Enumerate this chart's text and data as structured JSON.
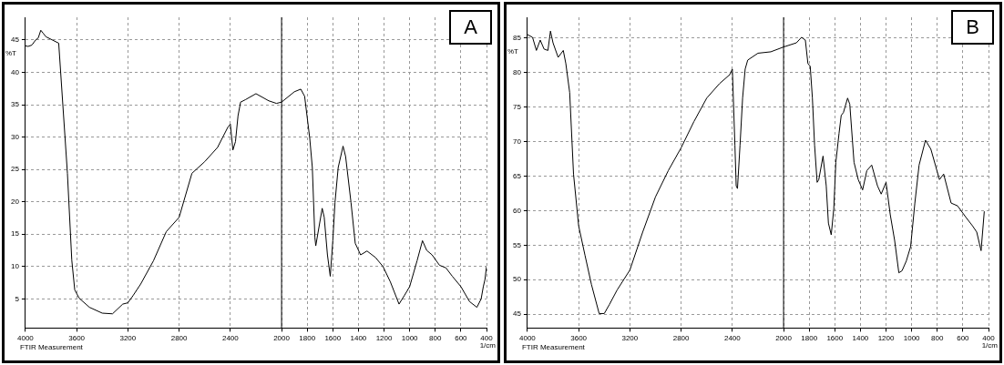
{
  "chart_data": [
    {
      "type": "line",
      "title": "A",
      "xlabel": "1/cm",
      "ylabel": "%T",
      "annotations": [
        "FTIR Measurement"
      ],
      "color": "#000000",
      "marker": "none",
      "grid": true,
      "x": [
        4000,
        3980,
        3950,
        3920,
        3900,
        3880,
        3860,
        3840,
        3740,
        3672,
        3638,
        3615,
        3580,
        3500,
        3400,
        3320,
        3240,
        3200,
        3160,
        3100,
        3000,
        2900,
        2800,
        2700,
        2600,
        2500,
        2420,
        2400,
        2380,
        2360,
        2340,
        2320,
        2280,
        2200,
        2100,
        2040,
        2000,
        1900,
        1850,
        1820,
        1780,
        1760,
        1740,
        1733,
        1683,
        1667,
        1642,
        1620,
        1600,
        1583,
        1558,
        1520,
        1500,
        1458,
        1425,
        1383,
        1333,
        1267,
        1208,
        1150,
        1083,
        1042,
        1000,
        942,
        900,
        867,
        825,
        767,
        717,
        667,
        600,
        533,
        475,
        442,
        425,
        412,
        400
      ],
      "values": [
        44.1,
        44.0,
        44.2,
        45.0,
        45.3,
        46.5,
        46.0,
        45.5,
        44.5,
        24.4,
        11,
        6.4,
        5.1,
        3.7,
        2.8,
        2.7,
        4.2,
        4.4,
        5.5,
        7.3,
        10.9,
        15.4,
        17.6,
        24.4,
        26.2,
        28.4,
        31.5,
        32,
        28,
        29.3,
        33.3,
        35.4,
        35.8,
        36.7,
        35.6,
        35.2,
        35.4,
        37,
        37.4,
        36.3,
        29.8,
        25.3,
        14.5,
        13.2,
        19,
        17.6,
        11.8,
        8.5,
        14,
        19.9,
        25.3,
        28.6,
        27,
        19.9,
        13.6,
        11.8,
        12.4,
        11.4,
        10,
        7.6,
        4.2,
        5.5,
        6.9,
        10.9,
        14,
        12.5,
        11.8,
        10.2,
        9.8,
        8.5,
        6.9,
        4.6,
        3.7,
        5,
        6.9,
        8,
        10
      ],
      "xlim": [
        4000,
        400
      ],
      "xticks": [
        4000,
        3600,
        3200,
        2800,
        2400,
        2000,
        1800,
        1600,
        1400,
        1200,
        1000,
        800,
        600,
        400
      ],
      "ylim": [
        0.5,
        48.5
      ],
      "yticks": [
        5,
        10,
        15,
        20,
        25,
        30,
        35,
        40,
        45
      ],
      "ref_lines": [
        {
          "axis": "x",
          "value": 2000,
          "color": "#000000"
        }
      ]
    },
    {
      "type": "line",
      "title": "B",
      "xlabel": "1/cm",
      "ylabel": "%T",
      "annotations": [
        "FTIR Measurement"
      ],
      "color": "#000000",
      "marker": "none",
      "grid": true,
      "x": [
        4000,
        3960,
        3930,
        3900,
        3870,
        3840,
        3820,
        3800,
        3760,
        3720,
        3700,
        3670,
        3640,
        3600,
        3550,
        3500,
        3440,
        3400,
        3360,
        3300,
        3200,
        3100,
        3000,
        2900,
        2800,
        2700,
        2600,
        2500,
        2420,
        2400,
        2380,
        2370,
        2360,
        2340,
        2320,
        2300,
        2280,
        2200,
        2100,
        2000,
        1900,
        1860,
        1830,
        1810,
        1792,
        1775,
        1758,
        1738,
        1725,
        1692,
        1667,
        1650,
        1628,
        1608,
        1592,
        1567,
        1550,
        1533,
        1500,
        1483,
        1450,
        1417,
        1383,
        1350,
        1312,
        1267,
        1238,
        1200,
        1167,
        1133,
        1100,
        1075,
        1042,
        1008,
        975,
        942,
        892,
        850,
        783,
        750,
        692,
        642,
        575,
        525,
        492,
        458,
        433
      ],
      "values": [
        85.5,
        85.1,
        83.2,
        84.7,
        83.4,
        83.2,
        86,
        84.3,
        82.2,
        83.2,
        81.3,
        77.1,
        65.3,
        57.8,
        53.5,
        49.3,
        45.1,
        45.1,
        46.4,
        48.5,
        51.4,
        56.9,
        62,
        65.8,
        69.1,
        72.9,
        76.3,
        78.4,
        79.7,
        80.5,
        69.5,
        63.6,
        63.2,
        69.5,
        76.3,
        80.5,
        81.8,
        82.8,
        83,
        83.7,
        84.3,
        85.1,
        84.7,
        81.3,
        80.9,
        76.3,
        69.5,
        64.1,
        64.5,
        67.9,
        63.6,
        58.2,
        56.5,
        60.3,
        67,
        71.2,
        73.8,
        74.2,
        76.3,
        75.4,
        67,
        64.5,
        63,
        65.8,
        66.6,
        63.6,
        62.4,
        64.1,
        59.4,
        55.7,
        51,
        51.3,
        52.7,
        54.8,
        61.1,
        66.6,
        70.2,
        68.9,
        64.5,
        65.3,
        61.1,
        60.7,
        59,
        57.8,
        56.9,
        54.2,
        59.9
      ],
      "xlim": [
        4000,
        400
      ],
      "xticks": [
        4000,
        3600,
        3200,
        2800,
        2400,
        2000,
        1800,
        1600,
        1400,
        1200,
        1000,
        800,
        600,
        400
      ],
      "ylim": [
        43,
        88
      ],
      "yticks": [
        45,
        50,
        55,
        60,
        65,
        70,
        75,
        80,
        85
      ],
      "ref_lines": [
        {
          "axis": "x",
          "value": 2000,
          "color": "#000000"
        }
      ]
    }
  ]
}
